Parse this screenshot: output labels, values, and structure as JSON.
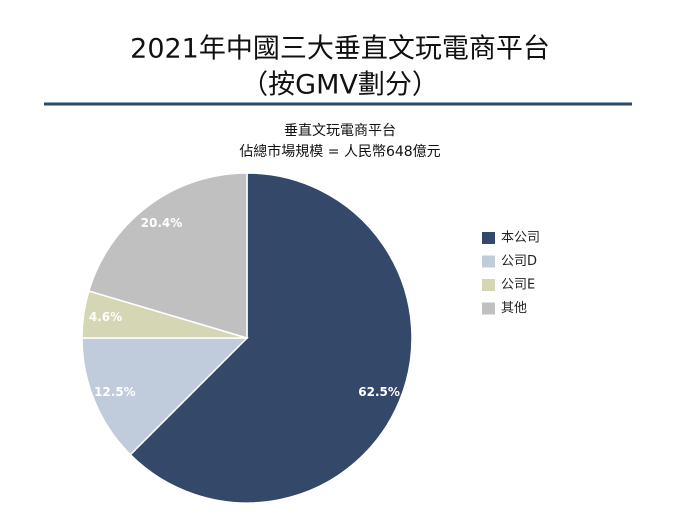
{
  "chart_data": {
    "type": "pie",
    "title": [
      "2021年中國三大垂直文玩電商平台",
      "（按GMV劃分）"
    ],
    "subtitle": [
      "垂直文玩電商平台",
      "佔總市場規模 = 人民幣648億元"
    ],
    "categories": [
      "本公司",
      "公司D",
      "公司E",
      "其他"
    ],
    "values": [
      62.5,
      12.5,
      4.6,
      20.4
    ],
    "value_labels": [
      "62.5%",
      "12.5%",
      "4.6%",
      "20.4%"
    ],
    "colors": [
      "#34486a",
      "#c0cbdc",
      "#d4d6b4",
      "#c0c0c0"
    ],
    "legend": "right"
  }
}
